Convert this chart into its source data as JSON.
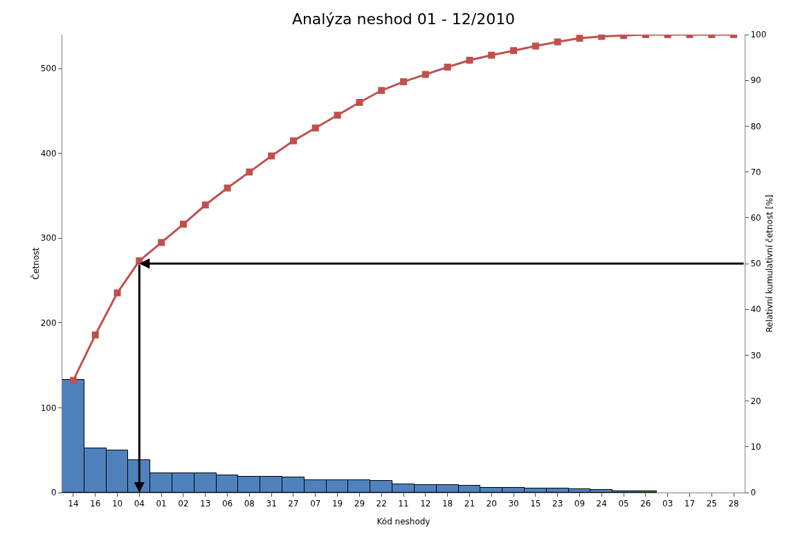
{
  "chart_data": {
    "type": "bar",
    "title": "Analýza neshod 01 - 12/2010",
    "xlabel": "Kód neshody",
    "ylabel": "Četnost",
    "y2label": "Relativní kumulativní četnost [%]",
    "categories": [
      "14",
      "16",
      "10",
      "04",
      "01",
      "02",
      "13",
      "06",
      "08",
      "31",
      "27",
      "07",
      "19",
      "29",
      "22",
      "11",
      "12",
      "18",
      "21",
      "20",
      "30",
      "15",
      "23",
      "09",
      "24",
      "05",
      "26",
      "03",
      "17",
      "25",
      "28"
    ],
    "series": [
      {
        "color": "#4f81bd",
        "values": [
          133,
          52,
          50,
          38,
          23,
          23,
          23,
          20,
          19,
          19,
          18,
          15,
          15,
          15,
          14,
          10,
          9,
          9,
          8,
          6,
          6,
          5,
          5,
          4,
          3,
          2,
          2,
          0,
          0,
          0,
          0
        ]
      },
      {
        "type": "line",
        "axis": "y2",
        "color": "#c0504d",
        "marker": "square",
        "values": [
          24.5,
          34.4,
          43.6,
          50.6,
          54.6,
          58.6,
          62.8,
          66.5,
          70,
          73.5,
          76.8,
          79.6,
          82.4,
          85.2,
          87.8,
          89.7,
          91.3,
          92.9,
          94.4,
          95.5,
          96.5,
          97.5,
          98.4,
          99.2,
          99.6,
          99.8,
          100,
          100,
          100,
          100,
          100
        ]
      }
    ],
    "ylim": [
      0,
      540
    ],
    "yticks": [
      0,
      100,
      200,
      300,
      400,
      500
    ],
    "y2lim": [
      0,
      100
    ],
    "y2ticks": [
      0,
      10,
      20,
      30,
      40,
      50,
      60,
      70,
      80,
      90,
      100
    ],
    "ref_lines": [
      {
        "axis": "y2",
        "value": 50,
        "color": "#000000"
      }
    ],
    "grid": false,
    "legend": false
  }
}
